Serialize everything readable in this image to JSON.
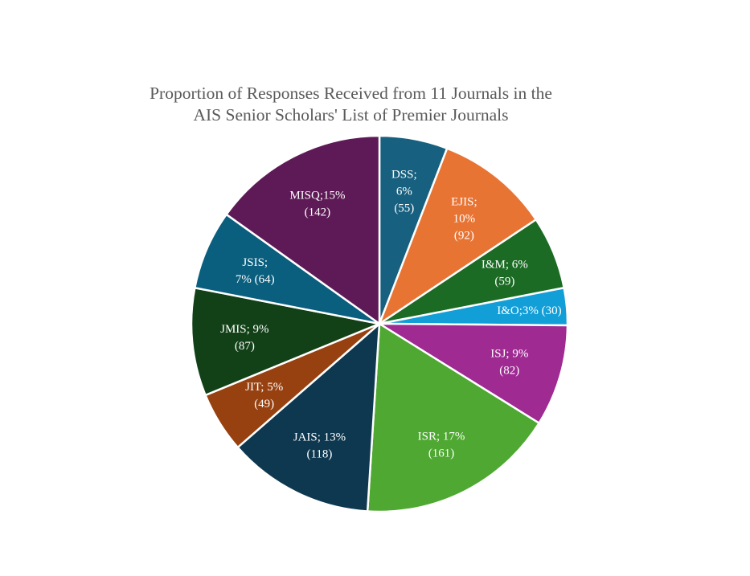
{
  "chart_data": {
    "type": "pie",
    "title": "Proportion of Responses Received from 11 Journals in the AIS Senior Scholars' List of Premier Journals",
    "title_lines": [
      "Proportion of Responses Received from 11 Journals in the",
      "AIS Senior Scholars' List of Premier Journals"
    ],
    "start": "top",
    "direction": "clockwise",
    "legend": "none",
    "slices": [
      {
        "name": "DSS",
        "value": 55,
        "percent": 6,
        "color": "#17607f",
        "label_lines": [
          "DSS;",
          "6%",
          "(55)"
        ]
      },
      {
        "name": "EJIS",
        "value": 92,
        "percent": 10,
        "color": "#e87434",
        "label_lines": [
          "EJIS;",
          "10%",
          "(92)"
        ]
      },
      {
        "name": "I&M",
        "value": 59,
        "percent": 6,
        "color": "#1b6b24",
        "label_lines": [
          "I&M; 6%",
          "(59)"
        ]
      },
      {
        "name": "I&O",
        "value": 30,
        "percent": 3,
        "color": "#129fd8",
        "label_lines": [
          "I&O;3% (30)"
        ]
      },
      {
        "name": "ISJ",
        "value": 82,
        "percent": 9,
        "color": "#9e2a92",
        "label_lines": [
          "ISJ; 9%",
          "(82)"
        ]
      },
      {
        "name": "ISR",
        "value": 161,
        "percent": 17,
        "color": "#4ea831",
        "label_lines": [
          "ISR; 17%",
          "(161)"
        ]
      },
      {
        "name": "JAIS",
        "value": 118,
        "percent": 13,
        "color": "#0e384f",
        "label_lines": [
          "JAIS; 13%",
          "(118)"
        ]
      },
      {
        "name": "JIT",
        "value": 49,
        "percent": 5,
        "color": "#974111",
        "label_lines": [
          "JIT; 5%",
          "(49)"
        ]
      },
      {
        "name": "JMIS",
        "value": 87,
        "percent": 9,
        "color": "#124117",
        "label_lines": [
          "JMIS; 9%",
          "(87)"
        ]
      },
      {
        "name": "JSIS",
        "value": 64,
        "percent": 7,
        "color": "#0a5e7e",
        "label_lines": [
          "JSIS;",
          "7% (64)"
        ]
      },
      {
        "name": "MISQ",
        "value": 142,
        "percent": 15,
        "color": "#5e1a56",
        "label_lines": [
          "MISQ;15%",
          "(142)"
        ]
      }
    ]
  }
}
